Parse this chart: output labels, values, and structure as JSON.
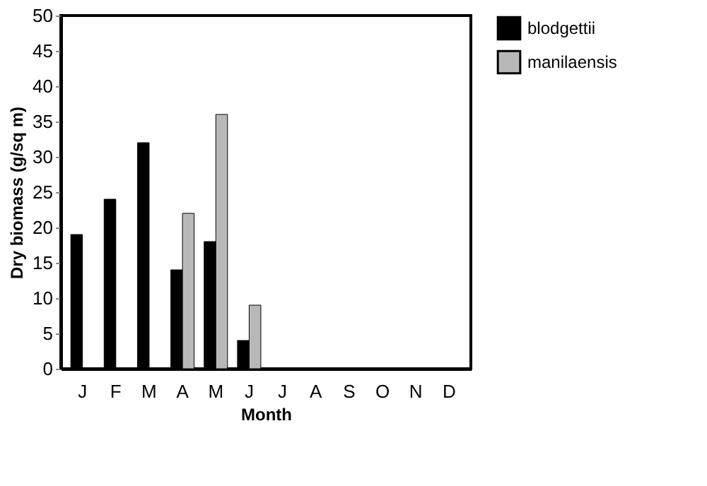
{
  "chart_data": {
    "type": "bar",
    "xlabel": "Month",
    "ylabel": "Dry  biomass  (g/sq  m)",
    "categories": [
      "J",
      "F",
      "M",
      "A",
      "M",
      "J",
      "J",
      "A",
      "S",
      "O",
      "N",
      "D"
    ],
    "series": [
      {
        "name": "blodgettii",
        "color": "#000000",
        "values": [
          19,
          24,
          32,
          14,
          18,
          4,
          null,
          null,
          null,
          null,
          null,
          null
        ]
      },
      {
        "name": "manilaensis",
        "color": "#b8b8b8",
        "values": [
          null,
          null,
          null,
          22,
          36,
          9,
          null,
          null,
          null,
          null,
          null,
          null
        ]
      }
    ],
    "ylim": [
      0,
      50
    ],
    "yticks": [
      0,
      5,
      10,
      15,
      20,
      25,
      30,
      35,
      40,
      45,
      50
    ],
    "grid": false,
    "legend": "right"
  }
}
